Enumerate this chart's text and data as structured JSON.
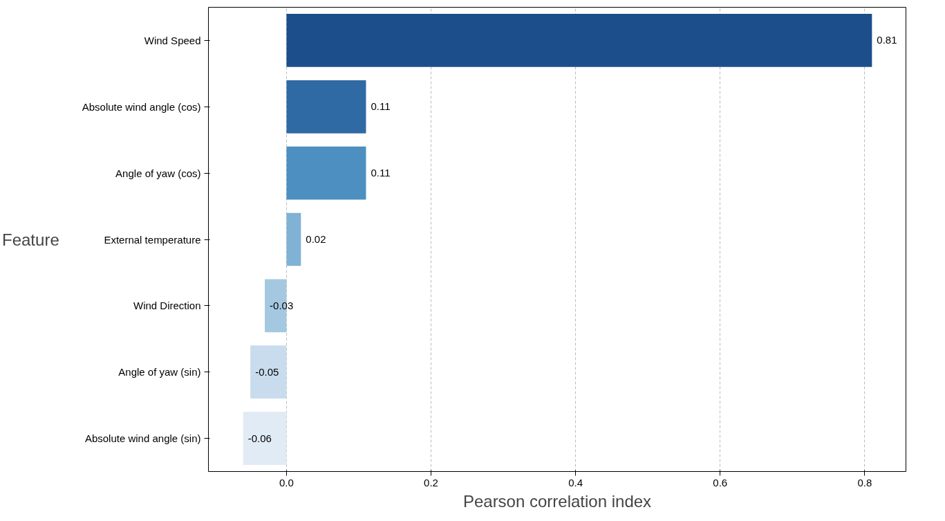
{
  "chart_data": {
    "type": "bar",
    "orientation": "horizontal",
    "xlabel": "Pearson correlation index",
    "ylabel": "Feature",
    "categories": [
      "Wind Speed",
      "Absolute wind angle (cos)",
      "Angle of yaw (cos)",
      "External temperature",
      "Wind Direction",
      "Angle of yaw (sin)",
      "Absolute wind angle (sin)"
    ],
    "values": [
      0.81,
      0.11,
      0.11,
      0.02,
      -0.03,
      -0.05,
      -0.06
    ],
    "colors": [
      "#1b4e8a",
      "#2f6aa5",
      "#4d8fc0",
      "#7fb2d5",
      "#a4c8df",
      "#c8dcee",
      "#e1ebf6"
    ],
    "xlim": [
      -0.108,
      0.857
    ],
    "xticks": [
      {
        "value": 0,
        "label": "0.0"
      },
      0.2,
      0.4,
      0.6,
      0.8
    ],
    "grid": "x",
    "data_labels": true
  }
}
